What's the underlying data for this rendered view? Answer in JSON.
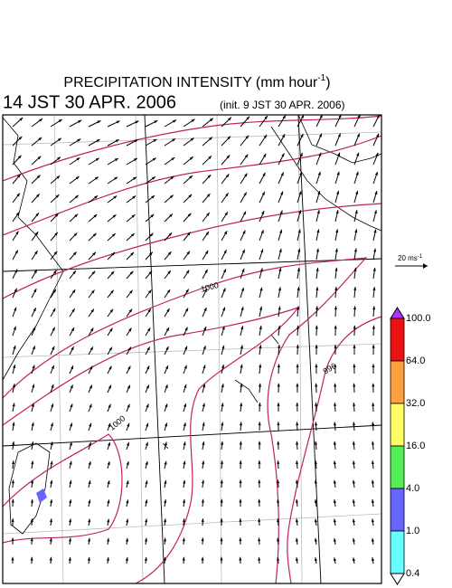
{
  "title": {
    "main": "PRECIPITATION INTENSITY (mm hour",
    "sup": "-1",
    "end": ")"
  },
  "valid_time": "14 JST 30 APR. 2006",
  "init_time": "(init. 9 JST 30 APR. 2006)",
  "wind_scale": {
    "main": "20 ms",
    "sup": "-1"
  },
  "contour_labels": [
    "1000",
    "1000",
    "996"
  ],
  "colorbar": [
    {
      "label": "100.0",
      "color": "#ee1111"
    },
    {
      "label": "64.0",
      "color": "#ffa040"
    },
    {
      "label": "32.0",
      "color": "#ffff66"
    },
    {
      "label": "16.0",
      "color": "#55ee55"
    },
    {
      "label": "4.0",
      "color": "#6666ff"
    },
    {
      "label": "1.0",
      "color": "#66ffff"
    },
    {
      "label": "0.4",
      "color": "#ffffff"
    }
  ]
}
